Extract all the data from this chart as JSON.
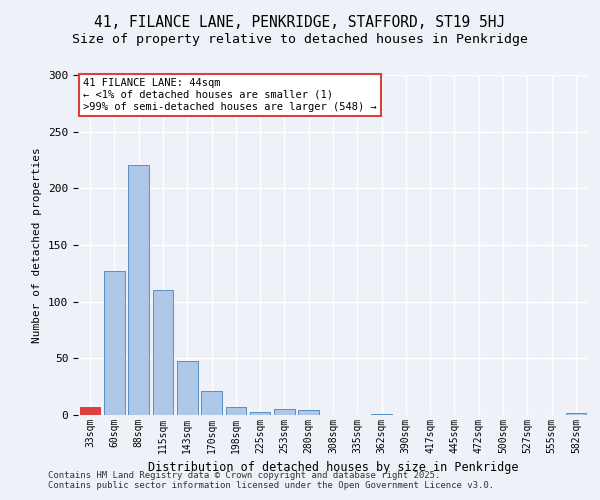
{
  "title_line1": "41, FILANCE LANE, PENKRIDGE, STAFFORD, ST19 5HJ",
  "title_line2": "Size of property relative to detached houses in Penkridge",
  "xlabel": "Distribution of detached houses by size in Penkridge",
  "ylabel": "Number of detached properties",
  "footer": "Contains HM Land Registry data © Crown copyright and database right 2025.\nContains public sector information licensed under the Open Government Licence v3.0.",
  "annotation_title": "41 FILANCE LANE: 44sqm",
  "annotation_line2": "← <1% of detached houses are smaller (1)",
  "annotation_line3": ">99% of semi-detached houses are larger (548) →",
  "categories": [
    "33sqm",
    "60sqm",
    "88sqm",
    "115sqm",
    "143sqm",
    "170sqm",
    "198sqm",
    "225sqm",
    "253sqm",
    "280sqm",
    "308sqm",
    "335sqm",
    "362sqm",
    "390sqm",
    "417sqm",
    "445sqm",
    "472sqm",
    "500sqm",
    "527sqm",
    "555sqm",
    "582sqm"
  ],
  "values": [
    7,
    127,
    221,
    110,
    48,
    21,
    7,
    3,
    5,
    4,
    0,
    0,
    1,
    0,
    0,
    0,
    0,
    0,
    0,
    0,
    2
  ],
  "bar_color": "#aec6e8",
  "bar_edge_color": "#5a8fc0",
  "highlight_bar_index": 0,
  "highlight_color": "#d94040",
  "background_color": "#eef2f8",
  "plot_bg_color": "#eef2f8",
  "grid_color": "#ffffff",
  "annotation_box_color": "#ffffff",
  "annotation_box_edge": "#d94040",
  "ylim": [
    0,
    300
  ],
  "yticks": [
    0,
    50,
    100,
    150,
    200,
    250,
    300
  ]
}
